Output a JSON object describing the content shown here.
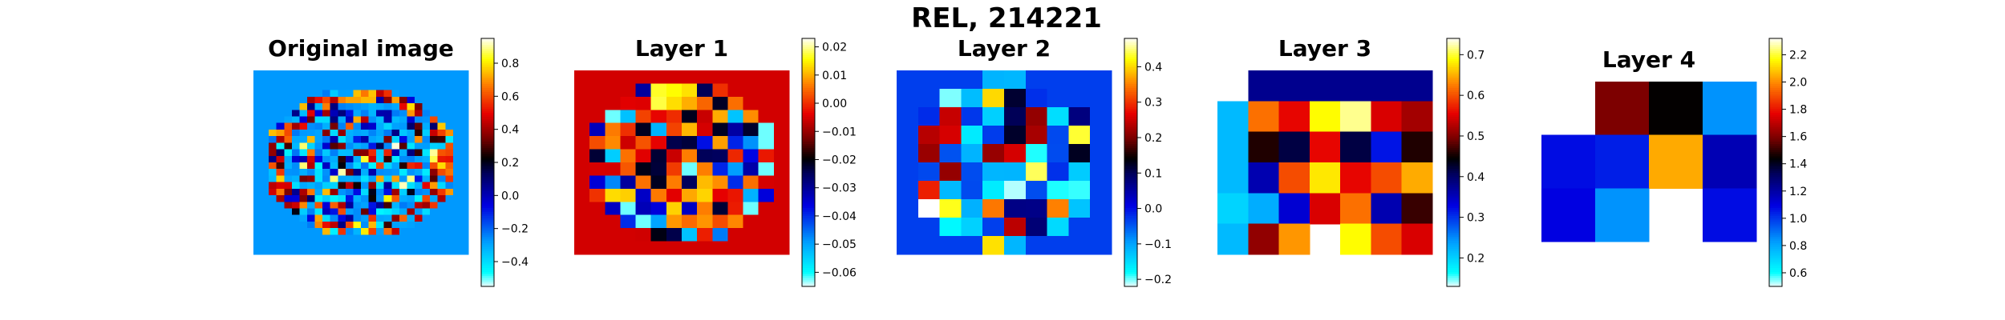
{
  "figure": {
    "title": "REL, 214221"
  },
  "chart_data": [
    {
      "type": "heatmap",
      "title": "Original image",
      "grid": false,
      "colormap": "jet-white-tails (cyan-blue-black-red-yellow-white)",
      "colorbar_ticks": [
        "0.8",
        "0.6",
        "0.4",
        "0.2",
        "0.0",
        "−0.2",
        "−0.4"
      ],
      "colorbar_range": [
        -0.55,
        0.95
      ],
      "rows": 28,
      "cols": 28,
      "note": "brain-slice activation map, circular region of mixed blue/red/yellow cells on blue background"
    },
    {
      "type": "heatmap",
      "title": "Layer 1",
      "grid": false,
      "colorbar_ticks": [
        "0.02",
        "0.01",
        "0.00",
        "−0.01",
        "−0.02",
        "−0.03",
        "−0.04",
        "−0.05",
        "−0.06"
      ],
      "colorbar_range": [
        -0.065,
        0.023
      ],
      "rows": 14,
      "cols": 14
    },
    {
      "type": "heatmap",
      "title": "Layer 2",
      "grid": false,
      "colorbar_ticks": [
        "0.4",
        "0.3",
        "0.2",
        "0.1",
        "0.0",
        "−0.1",
        "−0.2"
      ],
      "colorbar_range": [
        -0.22,
        0.48
      ],
      "rows": 10,
      "cols": 10
    },
    {
      "type": "heatmap",
      "title": "Layer 3",
      "grid": false,
      "colorbar_ticks": [
        "0.7",
        "0.6",
        "0.5",
        "0.4",
        "0.3",
        "0.2"
      ],
      "colorbar_range": [
        0.13,
        0.74
      ],
      "rows": 6,
      "cols": 7,
      "values": [
        [
          null,
          0.38,
          0.38,
          0.38,
          0.38,
          0.38,
          0.38
        ],
        [
          0.22,
          0.62,
          0.56,
          0.69,
          0.72,
          0.55,
          0.52
        ],
        [
          0.22,
          0.46,
          0.42,
          0.56,
          0.42,
          0.32,
          0.46
        ],
        [
          0.22,
          0.36,
          0.6,
          0.68,
          0.56,
          0.6,
          0.65
        ],
        [
          0.2,
          0.23,
          0.34,
          0.55,
          0.62,
          0.36,
          0.47
        ],
        [
          0.22,
          0.51,
          0.64,
          null,
          0.69,
          0.6,
          0.55
        ]
      ]
    },
    {
      "type": "heatmap",
      "title": "Layer 4",
      "grid": false,
      "colorbar_ticks": [
        "2.2",
        "2.0",
        "1.8",
        "1.6",
        "1.4",
        "1.2",
        "1.0",
        "0.8",
        "0.6"
      ],
      "colorbar_range": [
        0.5,
        2.32
      ],
      "rows": 3,
      "cols": 4,
      "values": [
        [
          null,
          1.6,
          1.45,
          0.85
        ],
        [
          1.08,
          1.05,
          2.05,
          1.18
        ],
        [
          1.1,
          0.85,
          null,
          1.08
        ]
      ]
    }
  ]
}
